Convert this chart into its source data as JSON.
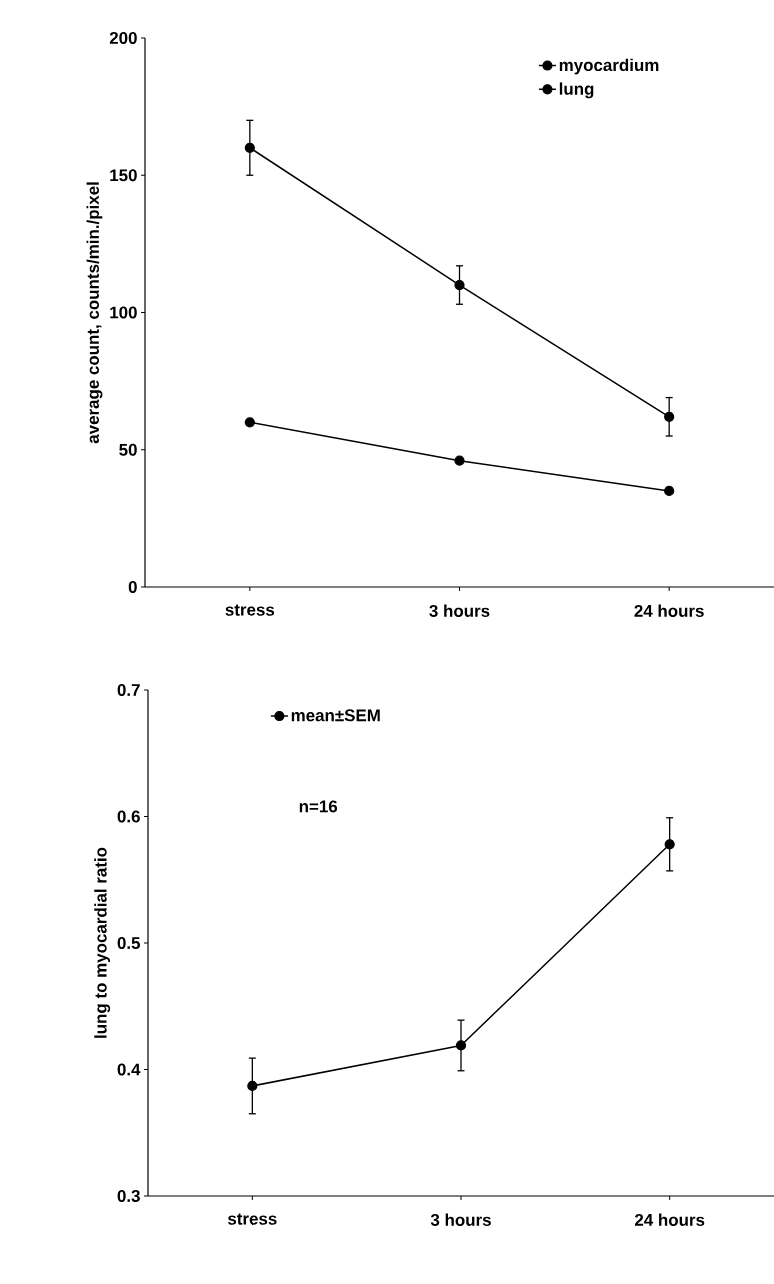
{
  "chart_data": [
    {
      "type": "line",
      "ylabel": "average count, counts/min./pixel",
      "categories": [
        "stress",
        "3 hours",
        "24 hours"
      ],
      "series": [
        {
          "name": "myocardium",
          "color": "#000000",
          "values": [
            160,
            110,
            62
          ],
          "errors": [
            10,
            7,
            7
          ]
        },
        {
          "name": "lung",
          "color": "#000000",
          "values": [
            60,
            46,
            35
          ]
        }
      ],
      "ylim": [
        0,
        200
      ],
      "yticks": [
        0,
        50,
        100,
        150,
        200
      ],
      "legend": "top right",
      "marker": "circle"
    },
    {
      "type": "line",
      "ylabel": "lung to myocardial ratio",
      "categories": [
        "stress",
        "3 hours",
        "24 hours"
      ],
      "series": [
        {
          "name": "mean±SEM",
          "color": "#000000",
          "values": [
            0.387,
            0.419,
            0.578
          ],
          "errors": [
            0.022,
            0.02,
            0.021
          ]
        }
      ],
      "ylim": [
        0.3,
        0.7
      ],
      "yticks": [
        0.3,
        0.4,
        0.5,
        0.6,
        0.7
      ],
      "legend": "top left",
      "marker": "circle",
      "annotations": [
        "n=16"
      ]
    }
  ]
}
